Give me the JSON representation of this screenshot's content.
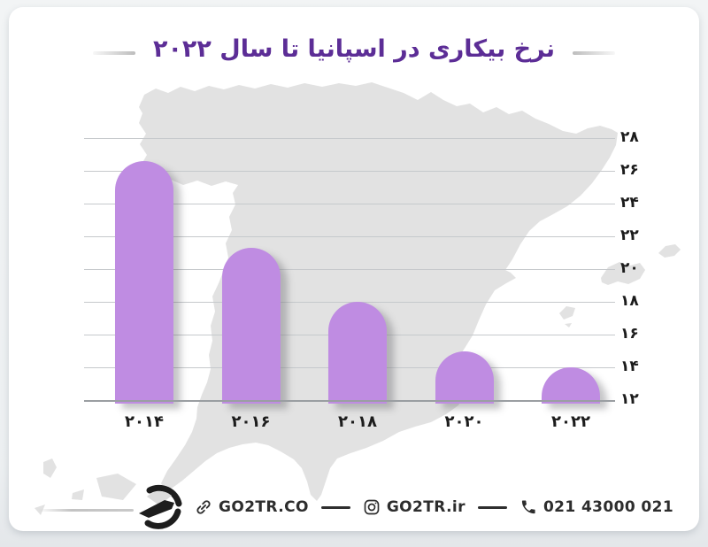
{
  "title": {
    "text": "نرخ بیکاری در اسپانیا تا سال ۲۰۲۲"
  },
  "chart_data": {
    "type": "bar",
    "title": "نرخ بیکاری در اسپانیا تا سال ۲۰۲۲",
    "categories": [
      "۲۰۱۴",
      "۲۰۱۶",
      "۲۰۱۸",
      "۲۰۲۰",
      "۲۰۲۲"
    ],
    "years": [
      2014,
      2016,
      2018,
      2020,
      2022
    ],
    "values": [
      26.6,
      21.3,
      18,
      15,
      14
    ],
    "ylim": [
      12,
      28
    ],
    "ytick_step": 2,
    "yticks": [
      "۲۸",
      "۲۶",
      "۲۴",
      "۲۲",
      "۲۰",
      "۱۸",
      "۱۶",
      "۱۴",
      "۱۲"
    ],
    "grid": true,
    "legend": false,
    "bar_color": "#bf8ce2",
    "background_motif": "spain-map-silhouette",
    "direction": "rtl"
  },
  "footer": {
    "logo": "GO2TR",
    "website": {
      "icon": "link-icon",
      "label": "GO2TR.CO"
    },
    "instagram": {
      "icon": "instagram-icon",
      "label": "GO2TR.ir"
    },
    "phone": {
      "icon": "phone-icon",
      "label": "021 43000 021"
    }
  },
  "colors": {
    "title": "#5c2d96",
    "bar": "#bf8ce2",
    "map": "#e2e2e2",
    "gridline": "#c6c9cc",
    "text": "#1c1c1c",
    "card": "#ffffff",
    "page_background": "#eceff1"
  }
}
